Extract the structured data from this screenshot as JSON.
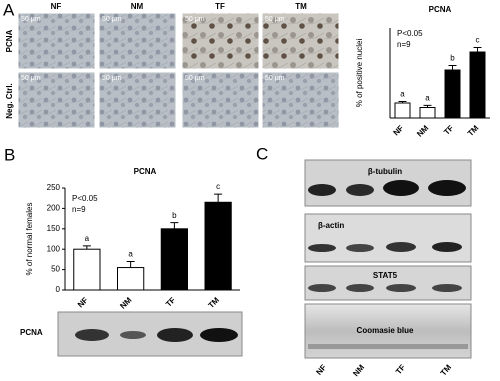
{
  "panel_labels": [
    "A",
    "B",
    "C"
  ],
  "micrographs": {
    "columns": [
      "NF",
      "NM",
      "TF",
      "TM"
    ],
    "rows": [
      "PCNA",
      "Neg. Ctrl."
    ],
    "scale_bar": "50 μm"
  },
  "blot_b": {
    "label": "PCNA"
  },
  "blot_c": {
    "labels": [
      "β-tubulin",
      "β-actin",
      "STAT5",
      "Coomasie blue"
    ],
    "lanes": [
      "NF",
      "NM",
      "TF",
      "TM"
    ]
  },
  "chart_data": [
    {
      "type": "bar",
      "title": "PCNA",
      "y_label": "% of positive nuclei",
      "categories": [
        "NF",
        "NM",
        "TF",
        "TM"
      ],
      "values": [
        5,
        3.5,
        16,
        22
      ],
      "errors": [
        0.5,
        0.7,
        1.5,
        1.5
      ],
      "colors": [
        "#ffffff",
        "#ffffff",
        "#000000",
        "#000000"
      ],
      "annotations": [
        "a",
        "a",
        "b",
        "c"
      ],
      "notes": [
        "P<0.05",
        "n=9"
      ],
      "ylim": [
        0,
        30
      ]
    },
    {
      "type": "bar",
      "title": "PCNA",
      "y_label": "% of normal females",
      "categories": [
        "NF",
        "NM",
        "TF",
        "TM"
      ],
      "values": [
        100,
        55,
        150,
        215
      ],
      "errors": [
        8,
        15,
        15,
        20
      ],
      "colors": [
        "#ffffff",
        "#ffffff",
        "#000000",
        "#000000"
      ],
      "annotations": [
        "a",
        "a",
        "b",
        "c"
      ],
      "notes": [
        "P<0.05",
        "n=9"
      ],
      "ylim": [
        0,
        250
      ],
      "yticks": [
        0,
        50,
        100,
        150,
        200,
        250
      ]
    }
  ]
}
